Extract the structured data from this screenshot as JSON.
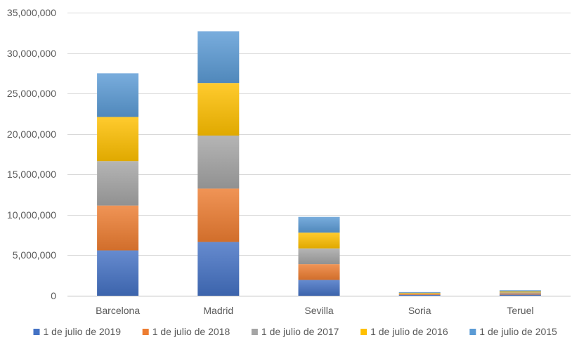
{
  "chart_data": {
    "type": "bar",
    "stacked": true,
    "title": "",
    "xlabel": "",
    "ylabel": "",
    "categories": [
      "Barcelona",
      "Madrid",
      "Sevilla",
      "Soria",
      "Teruel"
    ],
    "ylim": [
      0,
      35000000
    ],
    "yticks": [
      0,
      5000000,
      10000000,
      15000000,
      20000000,
      25000000,
      30000000,
      35000000
    ],
    "ytick_labels": [
      "0",
      "5,000,000",
      "10,000,000",
      "15,000,000",
      "20,000,000",
      "25,000,000",
      "30,000,000",
      "35,000,000"
    ],
    "grid": true,
    "legend_position": "bottom",
    "series": [
      {
        "name": "1 de julio de 2019",
        "color": "#4472C4",
        "values": [
          5600000,
          6650000,
          1950000,
          90000,
          135000
        ]
      },
      {
        "name": "1 de julio de 2018",
        "color": "#ED7D31",
        "values": [
          5550000,
          6600000,
          1950000,
          90000,
          135000
        ]
      },
      {
        "name": "1 de julio de 2017",
        "color": "#A5A5A5",
        "values": [
          5500000,
          6550000,
          1950000,
          90000,
          135000
        ]
      },
      {
        "name": "1 de julio de 2016",
        "color": "#FFC000",
        "values": [
          5450000,
          6500000,
          1950000,
          90000,
          135000
        ]
      },
      {
        "name": "1 de julio de 2015",
        "color": "#5B9BD5",
        "values": [
          5400000,
          6400000,
          1950000,
          90000,
          135000
        ]
      }
    ]
  }
}
